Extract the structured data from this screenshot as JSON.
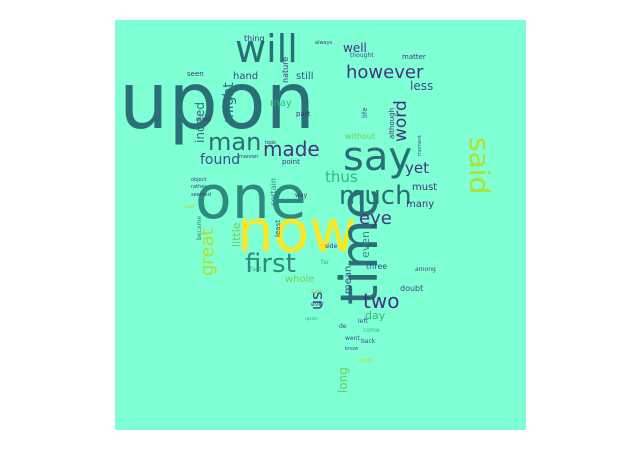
{
  "colors": {
    "background": "#7fffd4",
    "teal": "#2e8a80",
    "dark_teal": "#2a6f77",
    "navy": "#3c4d8a",
    "purple": "#46337e",
    "yellow": "#fde725",
    "lime": "#b5de2b",
    "green": "#6ece58",
    "sea": "#35b779"
  },
  "words": [
    {
      "text": "upon",
      "color": "dark_teal"
    },
    {
      "text": "one",
      "color": "teal"
    },
    {
      "text": "now",
      "color": "yellow"
    },
    {
      "text": "time",
      "color": "dark_teal"
    },
    {
      "text": "say",
      "color": "dark_teal"
    },
    {
      "text": "will",
      "color": "dark_teal"
    },
    {
      "text": "much",
      "color": "dark_teal"
    },
    {
      "text": "man",
      "color": "dark_teal"
    },
    {
      "text": "said",
      "color": "lime"
    },
    {
      "text": "made",
      "color": "purple"
    },
    {
      "text": "however",
      "color": "purple"
    },
    {
      "text": "first",
      "color": "teal"
    },
    {
      "text": "two",
      "color": "purple"
    },
    {
      "text": "great",
      "color": "lime"
    },
    {
      "text": "eye",
      "color": "purple"
    },
    {
      "text": "thus",
      "color": "sea"
    },
    {
      "text": "word",
      "color": "purple"
    },
    {
      "text": "us",
      "color": "purple"
    },
    {
      "text": "yet",
      "color": "purple"
    },
    {
      "text": "might",
      "color": "dark_teal"
    },
    {
      "text": "found",
      "color": "navy"
    },
    {
      "text": "indeed",
      "color": "dark_teal"
    },
    {
      "text": "well",
      "color": "purple"
    },
    {
      "text": "less",
      "color": "navy"
    },
    {
      "text": "long",
      "color": "green"
    },
    {
      "text": "day",
      "color": "sea"
    },
    {
      "text": "even",
      "color": "teal"
    },
    {
      "text": "mean",
      "color": "navy"
    },
    {
      "text": "little",
      "color": "green"
    },
    {
      "text": "many",
      "color": "purple"
    },
    {
      "text": "must",
      "color": "purple"
    },
    {
      "text": "whole",
      "color": "green"
    },
    {
      "text": "hand",
      "color": "navy"
    },
    {
      "text": "still",
      "color": "navy"
    },
    {
      "text": "may",
      "color": "sea"
    },
    {
      "text": "thing",
      "color": "purple"
    },
    {
      "text": "without",
      "color": "green"
    },
    {
      "text": "three",
      "color": "navy"
    },
    {
      "text": "doubt",
      "color": "navy"
    },
    {
      "text": "nature",
      "color": "purple"
    },
    {
      "text": "seen",
      "color": "purple"
    },
    {
      "text": "certain",
      "color": "teal"
    },
    {
      "text": "least",
      "color": "navy"
    },
    {
      "text": "mind",
      "color": "purple"
    },
    {
      "text": "part",
      "color": "purple"
    },
    {
      "text": "point",
      "color": "purple"
    },
    {
      "text": "became",
      "color": "teal"
    },
    {
      "text": "although",
      "color": "purple"
    },
    {
      "text": "life",
      "color": "navy"
    },
    {
      "text": "matter",
      "color": "purple"
    },
    {
      "text": "thought",
      "color": "navy"
    },
    {
      "text": "moment",
      "color": "navy"
    },
    {
      "text": "manner",
      "color": "purple"
    },
    {
      "text": "always",
      "color": "purple"
    },
    {
      "text": "took",
      "color": "purple"
    },
    {
      "text": "fact",
      "color": "sea"
    },
    {
      "text": "far",
      "color": "sea"
    },
    {
      "text": "ever",
      "color": "navy"
    },
    {
      "text": "de",
      "color": "navy"
    },
    {
      "text": "upon",
      "color": "lime"
    },
    {
      "text": "rather",
      "color": "purple"
    },
    {
      "text": "object",
      "color": "purple"
    },
    {
      "text": "seemed",
      "color": "purple"
    },
    {
      "text": "know",
      "color": "navy"
    },
    {
      "text": "come",
      "color": "sea"
    },
    {
      "text": "back",
      "color": "navy"
    },
    {
      "text": "way",
      "color": "purple"
    },
    {
      "text": "side",
      "color": "purple"
    },
    {
      "text": "half",
      "color": "lime"
    },
    {
      "text": "among",
      "color": "navy"
    },
    {
      "text": "went",
      "color": "navy"
    },
    {
      "text": "left",
      "color": "navy"
    },
    {
      "text": "saw",
      "color": "green"
    },
    {
      "text": "upon",
      "color": "sea"
    }
  ]
}
